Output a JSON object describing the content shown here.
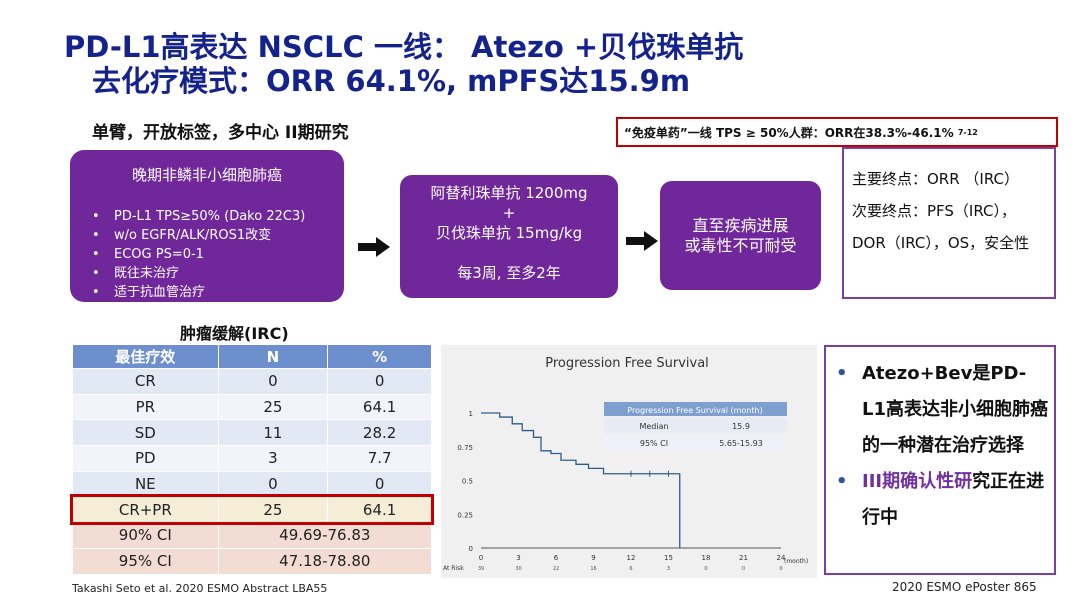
{
  "title": {
    "line1": "PD-L1高表达  NSCLC 一线：  Atezo +贝伐珠单抗",
    "line2": "去化疗模式：ORR 64.1%, mPFS达15.9m"
  },
  "subtitle": "单臂，开放标签，多中心 II期研究",
  "callout": {
    "text": "“免疫单药”一线 TPS ≥ 50%人群：ORR在38.3%-46.1%",
    "sup": "7-12",
    "border_color": "#c00000"
  },
  "population": {
    "title": "晚期非鳞非小细胞肺癌",
    "items": [
      "PD-L1 TPS≥50% (Dako 22C3)",
      "w/o EGFR/ALK/ROS1改变",
      "ECOG PS=0-1",
      "既往未治疗",
      "适于抗血管治疗"
    ]
  },
  "treatment": {
    "line1": "阿替利珠单抗 1200mg",
    "plus": "+",
    "line2": "贝伐珠单抗 15mg/kg",
    "line3": "每3周, 至多2年"
  },
  "until": {
    "line1": "直至疾病进展",
    "line2": "或毒性不可耐受"
  },
  "endpoints": {
    "primary": "主要终点：ORR （IRC）",
    "secondary": "次要终点：PFS（IRC），DOR（IRC），OS，安全性"
  },
  "table": {
    "title": "肿瘤缓解(IRC)",
    "headers": [
      "最佳疗效",
      "N",
      "%"
    ],
    "rows": [
      [
        "CR",
        "0",
        "0"
      ],
      [
        "PR",
        "25",
        "64.1"
      ],
      [
        "SD",
        "11",
        "28.2"
      ],
      [
        "PD",
        "3",
        "7.7"
      ],
      [
        "NE",
        "0",
        "0"
      ],
      [
        "CR+PR",
        "25",
        "64.1"
      ]
    ],
    "ci_rows": [
      [
        "90% CI",
        "49.69-76.83"
      ],
      [
        "95% CI",
        "47.18-78.80"
      ]
    ]
  },
  "chart_data": {
    "type": "line",
    "title": "Progression Free Survival",
    "xlabel": "",
    "x_unit": "(month)",
    "ylabel": "",
    "xlim": [
      0,
      24
    ],
    "ylim": [
      0,
      1
    ],
    "x_ticks": [
      0,
      3,
      6,
      9,
      12,
      15,
      18,
      21,
      24
    ],
    "y_ticks": [
      0,
      0.25,
      0.5,
      0.75,
      1
    ],
    "y_tick_labels": [
      "0",
      "0.25",
      "0.5",
      "0.75",
      "1"
    ],
    "at_risk_label": "At Risk",
    "at_risk": [
      "39",
      "30",
      "22",
      "16",
      "6",
      "3",
      "0",
      "0",
      "0"
    ],
    "series": [
      {
        "color": "#2f5d8a",
        "x": [
          0,
          1.5,
          1.5,
          2.5,
          2.5,
          3.3,
          3.3,
          4.2,
          4.2,
          4.8,
          4.8,
          5.6,
          5.6,
          6.4,
          6.4,
          7.6,
          7.6,
          8.6,
          8.6,
          9.8,
          9.8,
          15.9,
          15.9
        ],
        "y": [
          1,
          1,
          0.97,
          0.97,
          0.92,
          0.92,
          0.87,
          0.87,
          0.82,
          0.82,
          0.72,
          0.72,
          0.7,
          0.7,
          0.65,
          0.65,
          0.62,
          0.62,
          0.59,
          0.59,
          0.55,
          0.55,
          0
        ]
      }
    ],
    "censor_x": [
      12,
      13.5,
      15
    ],
    "censor_y": [
      0.55,
      0.55,
      0.55
    ],
    "inset_table": {
      "header": "Progression Free Survival (month)",
      "rows": [
        [
          "Median",
          "15.9"
        ],
        [
          "95% CI",
          "5.65-15.93"
        ]
      ]
    }
  },
  "conclusions": {
    "b1": "Atezo+Bev是PD-L1高表达非小细胞肺癌的一种潜在治疗选择",
    "b2_purple": "III期确认性研",
    "b2_rest": "究正在进行中"
  },
  "citation_left": "Takashi Seto et al. 2020 ESMO Abstract LBA55",
  "citation_right": "2020 ESMO ePoster 865"
}
